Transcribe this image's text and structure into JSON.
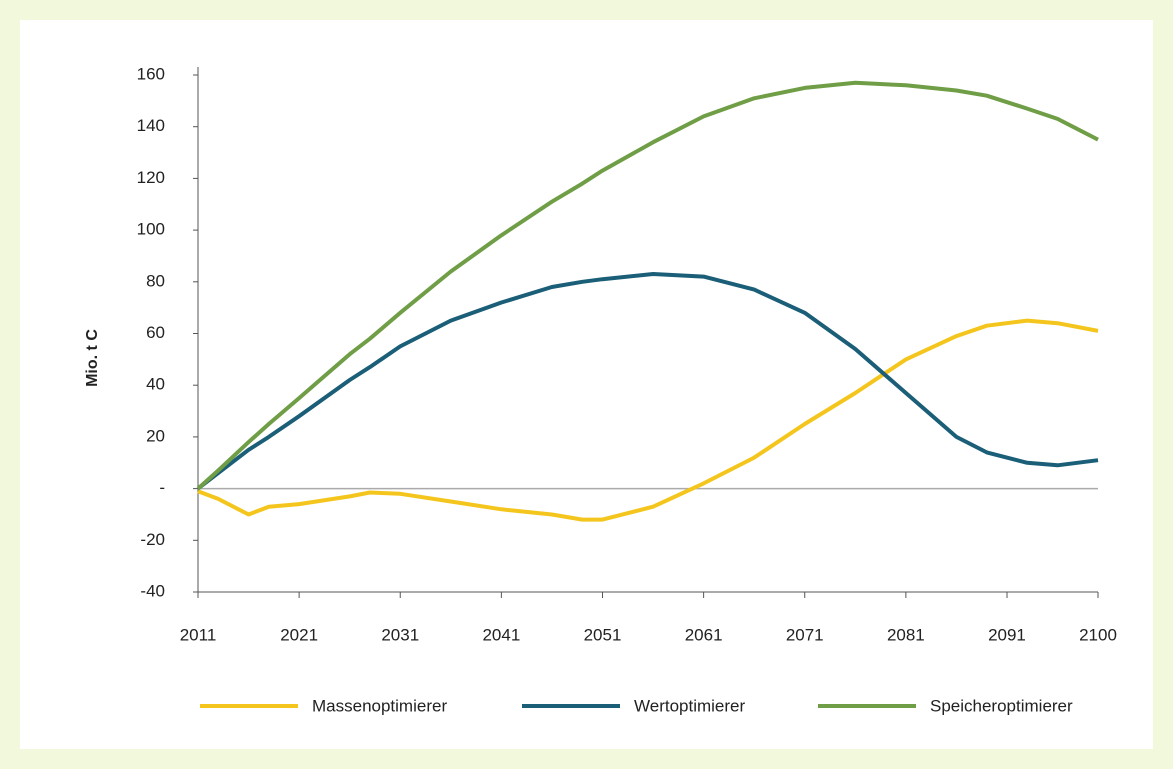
{
  "chart_data": {
    "type": "line",
    "y_label": "Mio. t C",
    "x": [
      2011,
      2013,
      2016,
      2018,
      2021,
      2026,
      2028,
      2031,
      2036,
      2041,
      2046,
      2049,
      2051,
      2056,
      2061,
      2066,
      2071,
      2076,
      2081,
      2086,
      2089,
      2093,
      2096,
      2100
    ],
    "series": [
      {
        "name": "Massenoptimierer",
        "color": "#f4c51c",
        "values": [
          -1,
          -4,
          -10,
          -7,
          -6,
          -3,
          -1.5,
          -2,
          -5,
          -8,
          -10,
          -12,
          -12,
          -7,
          2,
          12,
          25,
          37,
          50,
          59,
          63,
          65,
          64,
          61
        ]
      },
      {
        "name": "Wertoptimierer",
        "color": "#1b5e78",
        "values": [
          0,
          6,
          15,
          20,
          28,
          42,
          47,
          55,
          65,
          72,
          78,
          80,
          81,
          83,
          82,
          77,
          68,
          54,
          37,
          20,
          14,
          10,
          9,
          11
        ]
      },
      {
        "name": "Speicheroptimierer",
        "color": "#6f9e46",
        "values": [
          0,
          7,
          18,
          25,
          35,
          52,
          58,
          68,
          84,
          98,
          111,
          118,
          123,
          134,
          144,
          151,
          155,
          157,
          156,
          154,
          152,
          147,
          143,
          135
        ]
      }
    ],
    "xlim": [
      2011,
      2100
    ],
    "xticks": [
      2011,
      2021,
      2031,
      2041,
      2051,
      2061,
      2071,
      2081,
      2091,
      2100
    ],
    "ylim": [
      -40,
      160
    ],
    "yticks": [
      -40,
      -20,
      {
        "value": 0,
        "label": "-"
      },
      20,
      40,
      60,
      80,
      100,
      120,
      140,
      160
    ],
    "legend": "bottom"
  }
}
